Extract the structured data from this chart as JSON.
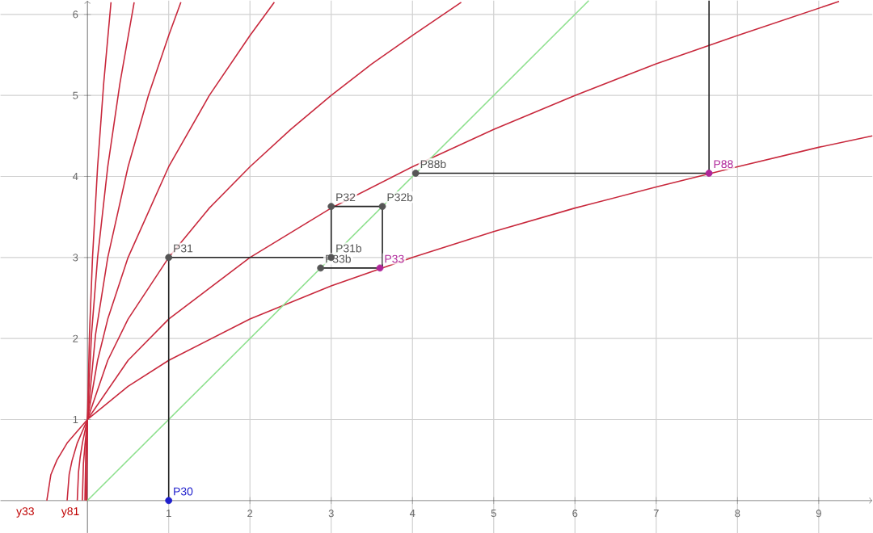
{
  "chart_data": {
    "type": "line",
    "xlim": [
      -1.07,
      9.66
    ],
    "ylim": [
      -0.4,
      6.17
    ],
    "xticks": [
      1,
      2,
      3,
      4,
      5,
      6,
      7,
      8,
      9
    ],
    "yticks": [
      1,
      2,
      3,
      4,
      5,
      6
    ],
    "grid": true,
    "series": [
      {
        "color": "#c8283c",
        "x": [
          -0.5,
          -0.45,
          -0.375,
          -0.25,
          0,
          0.5,
          1,
          2,
          3,
          4,
          5,
          6,
          7,
          8,
          9,
          9.66
        ],
        "values": [
          0,
          0.32,
          0.5,
          0.71,
          1,
          1.41,
          1.73,
          2.24,
          2.65,
          3,
          3.32,
          3.61,
          3.87,
          4.12,
          4.36,
          4.5
        ]
      },
      {
        "color": "#c8283c",
        "x": [
          -0.25,
          -0.225,
          -0.19,
          -0.125,
          0,
          0.5,
          1,
          2,
          3,
          4,
          5,
          6,
          7,
          8,
          9.25
        ],
        "values": [
          0,
          0.32,
          0.49,
          0.71,
          1,
          1.73,
          2.24,
          3,
          3.61,
          4.12,
          4.58,
          5,
          5.39,
          5.74,
          6.16
        ]
      },
      {
        "color": "#c8283c",
        "x": [
          -0.125,
          -0.11,
          -0.09,
          -0.06,
          0,
          0.25,
          0.5,
          1,
          1.5,
          2,
          2.5,
          3,
          3.5,
          4,
          4.6
        ],
        "values": [
          0,
          0.35,
          0.53,
          0.72,
          1,
          1.73,
          2.24,
          3,
          3.61,
          4.12,
          4.58,
          5,
          5.39,
          5.74,
          6.15
        ]
      },
      {
        "color": "#c8283c",
        "x": [
          -0.0625,
          -0.05,
          -0.03,
          0,
          0.125,
          0.25,
          0.5,
          1,
          1.5,
          2,
          2.3
        ],
        "values": [
          0,
          0.45,
          0.69,
          1,
          1.73,
          2.24,
          3,
          4.12,
          5,
          5.74,
          6.15
        ]
      },
      {
        "color": "#c8283c",
        "x": [
          -0.031,
          -0.02,
          0,
          0.1,
          0.25,
          0.5,
          0.75,
          1,
          1.15
        ],
        "values": [
          0,
          0.6,
          1,
          2.05,
          3,
          4.12,
          5,
          5.74,
          6.15
        ]
      },
      {
        "color": "#c8283c",
        "x": [
          -0.016,
          0,
          0.05,
          0.125,
          0.25,
          0.4,
          0.575
        ],
        "values": [
          0,
          1,
          2.05,
          3,
          4.12,
          5.15,
          6.15
        ]
      },
      {
        "color": "#c8283c",
        "x": [
          -0.008,
          0,
          0.025,
          0.0625,
          0.125,
          0.2,
          0.29
        ],
        "values": [
          0,
          1,
          2.05,
          3,
          4.12,
          5.15,
          6.15
        ]
      },
      {
        "color": "#8ee08e",
        "x": [
          0,
          6.17
        ],
        "values": [
          0,
          6.17
        ]
      },
      {
        "color": "#222222",
        "x": [
          1,
          1,
          3,
          3,
          3.63,
          3.63,
          2.87
        ],
        "values": [
          0,
          3,
          3,
          3.63,
          3.63,
          2.87,
          2.87
        ]
      },
      {
        "color": "#222222",
        "x": [
          7.65,
          7.65,
          4.04
        ],
        "values": [
          6.17,
          4.04,
          4.04
        ]
      },
      {
        "type": "scatter",
        "marker": "circle",
        "x": [
          1,
          1,
          3,
          3,
          3.63,
          3.6,
          2.87,
          4.04,
          7.65
        ],
        "values": [
          0,
          3,
          3,
          3.63,
          3.63,
          2.87,
          2.87,
          4.04,
          4.04
        ],
        "colors": [
          "#1f1fcc",
          "#555555",
          "#555555",
          "#555555",
          "#555555",
          "#b0269a",
          "#555555",
          "#555555",
          "#b0269a"
        ]
      }
    ],
    "annotations": [
      {
        "text": "P30",
        "x": 1,
        "y": 0
      },
      {
        "text": "P31",
        "x": 1,
        "y": 3
      },
      {
        "text": "P31b",
        "x": 3,
        "y": 3
      },
      {
        "text": "P32",
        "x": 3,
        "y": 3.63
      },
      {
        "text": "P32b",
        "x": 3.63,
        "y": 3.63
      },
      {
        "text": "P33",
        "x": 3.6,
        "y": 2.87
      },
      {
        "text": "P33b",
        "x": 2.87,
        "y": 2.87
      },
      {
        "text": "P88b",
        "x": 4.04,
        "y": 4.04
      },
      {
        "text": "P88",
        "x": 7.65,
        "y": 4.04
      },
      "y33",
      "y81"
    ]
  }
}
